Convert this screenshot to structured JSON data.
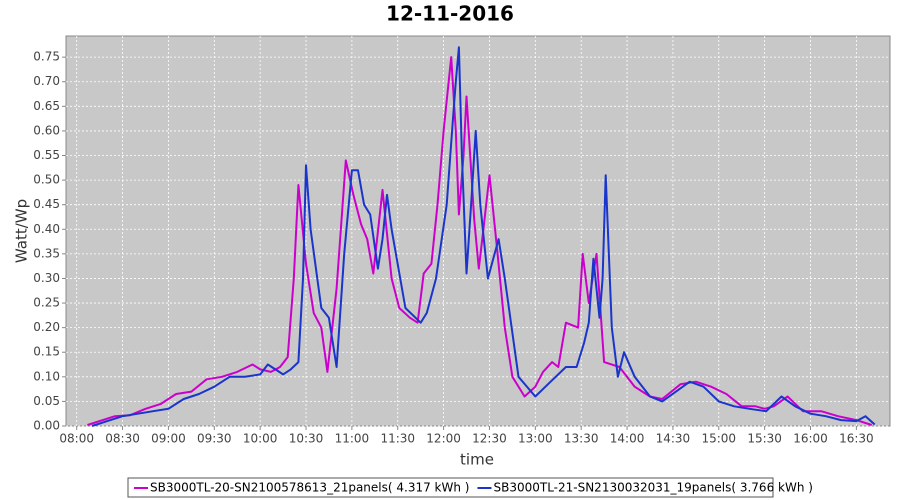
{
  "chart_data": {
    "type": "line",
    "title": "12-11-2016",
    "xlabel": "time",
    "ylabel": "Watt/Wp",
    "xlim": [
      473,
      1012
    ],
    "ylim": [
      0,
      0.793
    ],
    "grid": true,
    "legend": "bottom",
    "xticks": [
      {
        "value": 480,
        "label": "08:00"
      },
      {
        "value": 510,
        "label": "08:30"
      },
      {
        "value": 540,
        "label": "09:00"
      },
      {
        "value": 570,
        "label": "09:30"
      },
      {
        "value": 600,
        "label": "10:00"
      },
      {
        "value": 630,
        "label": "10:30"
      },
      {
        "value": 660,
        "label": "11:00"
      },
      {
        "value": 690,
        "label": "11:30"
      },
      {
        "value": 720,
        "label": "12:00"
      },
      {
        "value": 750,
        "label": "12:30"
      },
      {
        "value": 780,
        "label": "13:00"
      },
      {
        "value": 810,
        "label": "13:30"
      },
      {
        "value": 840,
        "label": "14:00"
      },
      {
        "value": 870,
        "label": "14:30"
      },
      {
        "value": 900,
        "label": "15:00"
      },
      {
        "value": 930,
        "label": "15:30"
      },
      {
        "value": 960,
        "label": "16:00"
      },
      {
        "value": 990,
        "label": "16:30"
      }
    ],
    "yticks": [
      {
        "value": 0,
        "label": "0.00"
      },
      {
        "value": 0.05,
        "label": "0.05"
      },
      {
        "value": 0.1,
        "label": "0.10"
      },
      {
        "value": 0.15,
        "label": "0.15"
      },
      {
        "value": 0.2,
        "label": "0.20"
      },
      {
        "value": 0.25,
        "label": "0.25"
      },
      {
        "value": 0.3,
        "label": "0.30"
      },
      {
        "value": 0.35,
        "label": "0.35"
      },
      {
        "value": 0.4,
        "label": "0.40"
      },
      {
        "value": 0.45,
        "label": "0.45"
      },
      {
        "value": 0.5,
        "label": "0.50"
      },
      {
        "value": 0.55,
        "label": "0.55"
      },
      {
        "value": 0.6,
        "label": "0.60"
      },
      {
        "value": 0.65,
        "label": "0.65"
      },
      {
        "value": 0.7,
        "label": "0.70"
      },
      {
        "value": 0.75,
        "label": "0.75"
      }
    ],
    "series": [
      {
        "name": "SB3000TL-20-SN2100578613_21panels( 4.317 kWh )",
        "color": "#cc00cc",
        "x": [
          487,
          495,
          505,
          515,
          525,
          535,
          545,
          555,
          565,
          575,
          585,
          595,
          600,
          607,
          613,
          618,
          622,
          625,
          630,
          635,
          640,
          644,
          650,
          656,
          661,
          666,
          670,
          674,
          680,
          686,
          691,
          698,
          703,
          707,
          712,
          716,
          720,
          725,
          728,
          730,
          733,
          735,
          740,
          743,
          746,
          750,
          755,
          760,
          765,
          773,
          780,
          785,
          791,
          795,
          800,
          808,
          811,
          815,
          820,
          825,
          835,
          845,
          855,
          863,
          875,
          885,
          895,
          905,
          915,
          924,
          930,
          936,
          945,
          955,
          967,
          978,
          990,
          1000
        ],
        "values": [
          0.002,
          0.01,
          0.02,
          0.022,
          0.035,
          0.045,
          0.065,
          0.07,
          0.095,
          0.1,
          0.11,
          0.125,
          0.115,
          0.11,
          0.12,
          0.14,
          0.3,
          0.49,
          0.33,
          0.23,
          0.2,
          0.11,
          0.28,
          0.54,
          0.47,
          0.41,
          0.38,
          0.31,
          0.48,
          0.3,
          0.24,
          0.22,
          0.21,
          0.31,
          0.33,
          0.45,
          0.6,
          0.75,
          0.6,
          0.43,
          0.55,
          0.67,
          0.42,
          0.32,
          0.4,
          0.51,
          0.36,
          0.2,
          0.1,
          0.06,
          0.08,
          0.11,
          0.13,
          0.12,
          0.21,
          0.2,
          0.35,
          0.25,
          0.35,
          0.13,
          0.12,
          0.08,
          0.06,
          0.055,
          0.085,
          0.09,
          0.08,
          0.065,
          0.04,
          0.04,
          0.035,
          0.04,
          0.06,
          0.03,
          0.03,
          0.02,
          0.012,
          0.002
        ]
      },
      {
        "name": "SB3000TL-21-SN2130032031_19panels( 3.766 kWh )",
        "color": "#1a35cc",
        "x": [
          490,
          500,
          510,
          520,
          530,
          540,
          550,
          560,
          570,
          580,
          590,
          600,
          605,
          610,
          615,
          620,
          625,
          628,
          630,
          633,
          640,
          645,
          650,
          655,
          660,
          664,
          668,
          672,
          677,
          680,
          683,
          686,
          695,
          705,
          709,
          715,
          722,
          726,
          728,
          730,
          732,
          735,
          738,
          741,
          744,
          749,
          756,
          760,
          769,
          780,
          790,
          800,
          807,
          812,
          815,
          818,
          822,
          824,
          826,
          830,
          834,
          838,
          845,
          855,
          863,
          872,
          881,
          890,
          900,
          910,
          920,
          931,
          941,
          950,
          960,
          970,
          980,
          990,
          996,
          1002
        ],
        "values": [
          0.0,
          0.01,
          0.02,
          0.025,
          0.03,
          0.035,
          0.055,
          0.065,
          0.08,
          0.1,
          0.1,
          0.105,
          0.125,
          0.115,
          0.105,
          0.115,
          0.13,
          0.3,
          0.53,
          0.4,
          0.24,
          0.22,
          0.12,
          0.35,
          0.52,
          0.52,
          0.45,
          0.43,
          0.32,
          0.38,
          0.47,
          0.4,
          0.24,
          0.21,
          0.23,
          0.3,
          0.45,
          0.62,
          0.7,
          0.77,
          0.55,
          0.31,
          0.45,
          0.6,
          0.45,
          0.3,
          0.38,
          0.3,
          0.1,
          0.06,
          0.09,
          0.12,
          0.12,
          0.17,
          0.21,
          0.34,
          0.22,
          0.3,
          0.51,
          0.2,
          0.1,
          0.15,
          0.1,
          0.06,
          0.05,
          0.07,
          0.09,
          0.08,
          0.05,
          0.04,
          0.035,
          0.03,
          0.06,
          0.04,
          0.025,
          0.02,
          0.012,
          0.01,
          0.02,
          0.003
        ]
      }
    ]
  }
}
